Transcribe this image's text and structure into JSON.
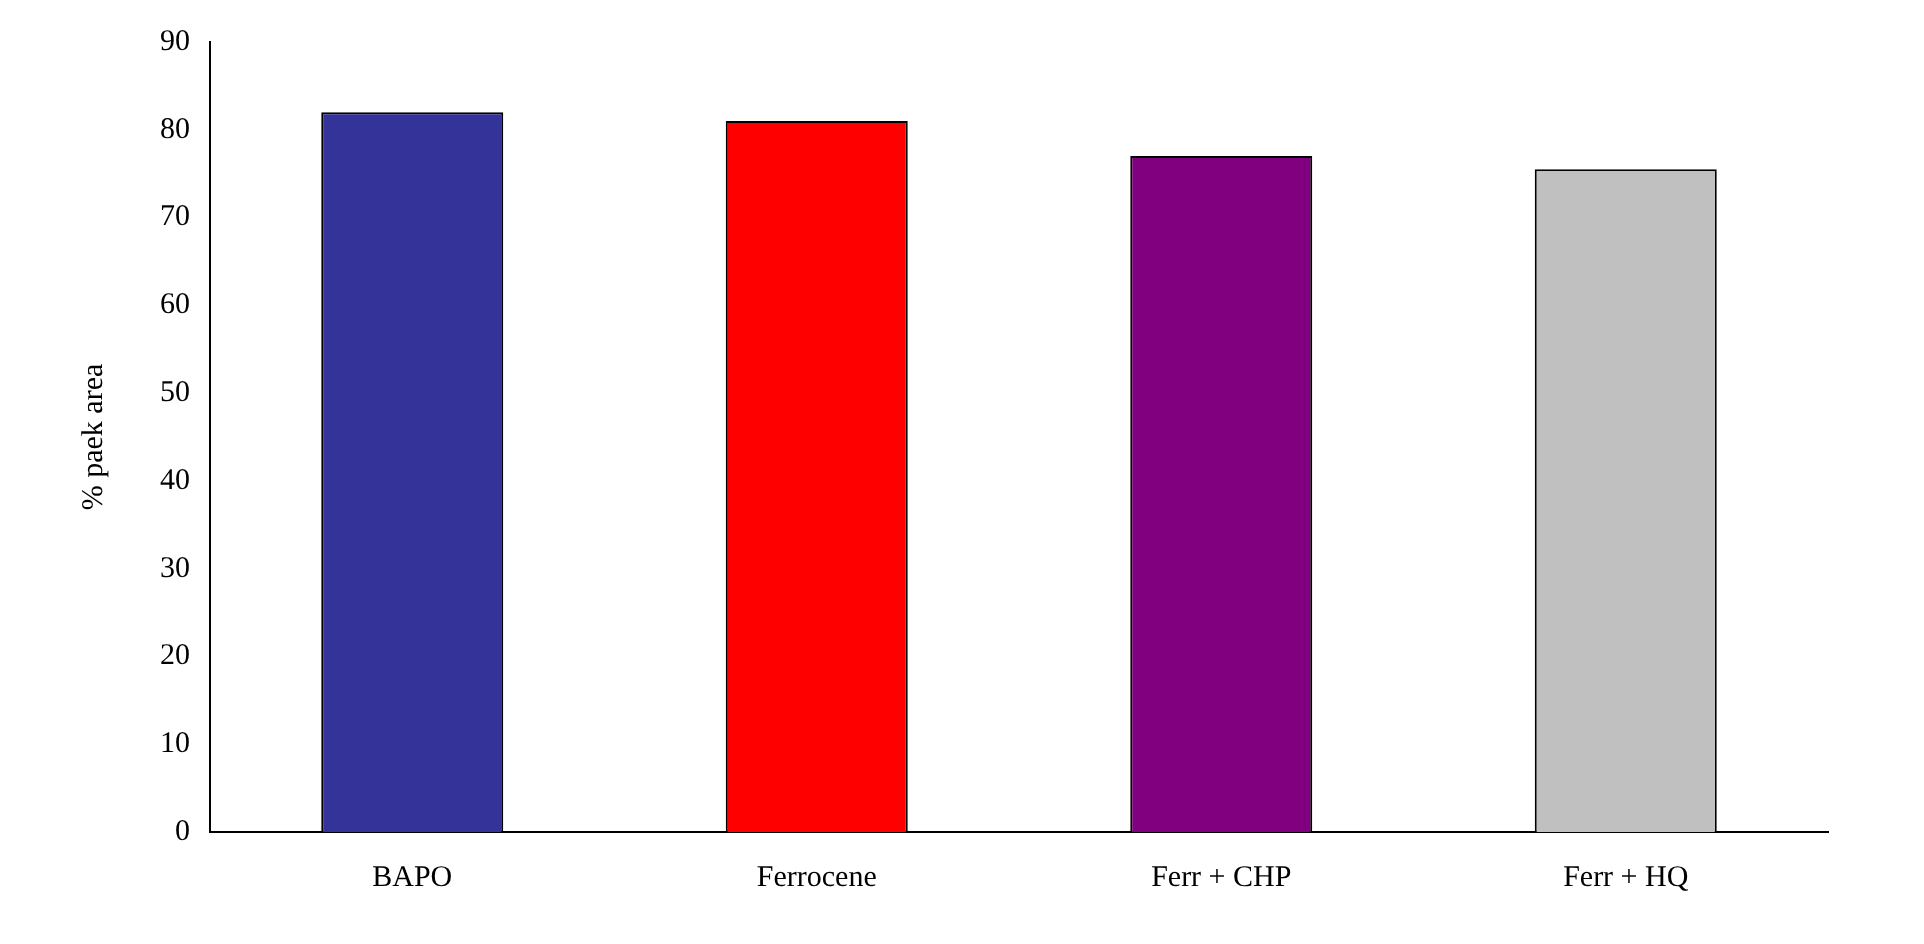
{
  "chart_data": {
    "type": "bar",
    "ylabel": "% paek area",
    "categories": [
      "BAPO",
      "Ferrocene",
      "Ferr + CHP",
      "Ferr + HQ"
    ],
    "values": [
      82,
      81,
      77,
      75.5
    ],
    "colors": [
      "#333399",
      "#ff0000",
      "#800080",
      "#c0c0c0"
    ],
    "ylim": [
      0,
      90
    ],
    "yticks": [
      0,
      10,
      20,
      30,
      40,
      50,
      60,
      70,
      80,
      90
    ],
    "grid": false,
    "legend": false
  }
}
